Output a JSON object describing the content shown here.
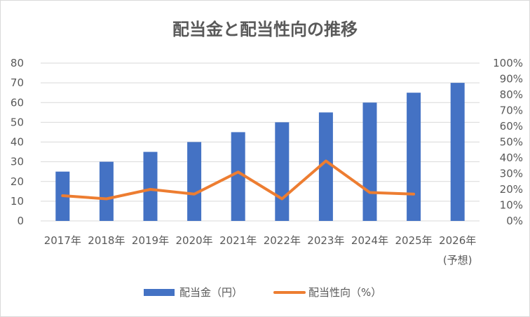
{
  "chart_data": {
    "type": "bar+line",
    "title": "配当金と配当性向の推移",
    "categories": [
      "2017年",
      "2018年",
      "2019年",
      "2020年",
      "2021年",
      "2022年",
      "2023年",
      "2024年",
      "2025年",
      "2026年"
    ],
    "category_sublabels": [
      "",
      "",
      "",
      "",
      "",
      "",
      "",
      "",
      "",
      "(予想)"
    ],
    "series": [
      {
        "name": "配当金（円）",
        "type": "bar",
        "axis": "left",
        "color": "#4472c4",
        "values": [
          25,
          30,
          35,
          40,
          45,
          50,
          55,
          60,
          65,
          70
        ]
      },
      {
        "name": "配当性向（%）",
        "type": "line",
        "axis": "right",
        "color": "#ed7d31",
        "values": [
          16,
          14,
          20,
          17,
          31,
          14,
          38,
          18,
          17,
          null
        ]
      }
    ],
    "y_left": {
      "min": 0,
      "max": 80,
      "step": 10,
      "tick_labels": [
        "0",
        "10",
        "20",
        "30",
        "40",
        "50",
        "60",
        "70",
        "80"
      ]
    },
    "y_right": {
      "min": 0,
      "max": 100,
      "step": 10,
      "tick_labels": [
        "0%",
        "10%",
        "20%",
        "30%",
        "40%",
        "50%",
        "60%",
        "70%",
        "80%",
        "90%",
        "100%"
      ]
    },
    "grid": true,
    "legend_position": "bottom"
  }
}
